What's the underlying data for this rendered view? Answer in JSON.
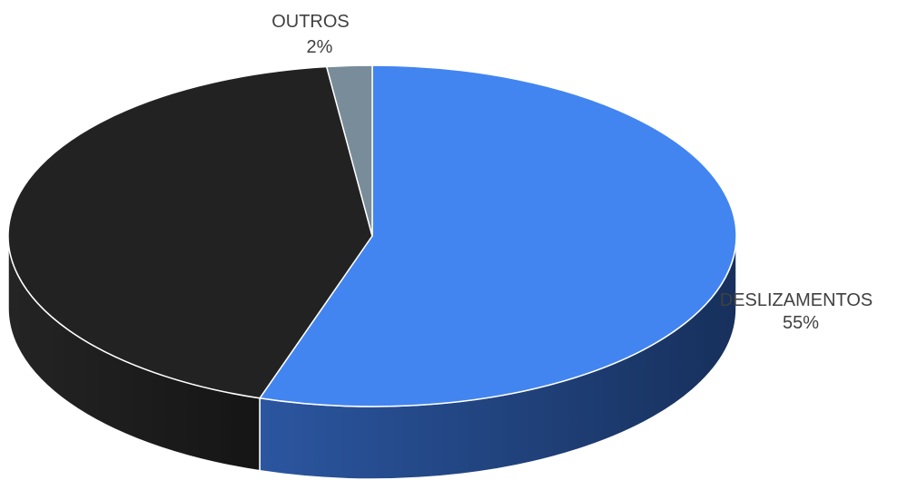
{
  "chart_data": {
    "type": "pie",
    "style": "3d",
    "title": "",
    "slices": [
      {
        "label": "DESLIZAMENTOS",
        "value_label": "55%",
        "value": 55,
        "color": "#4285F0",
        "side_color": "#1F3F73"
      },
      {
        "label": "",
        "value_label": "",
        "value": 43,
        "color": "#222222",
        "side_color": "#161616"
      },
      {
        "label": "OUTROS",
        "value_label": "2%",
        "value": 2,
        "color": "#798C99",
        "side_color": "#4A5860"
      }
    ]
  }
}
